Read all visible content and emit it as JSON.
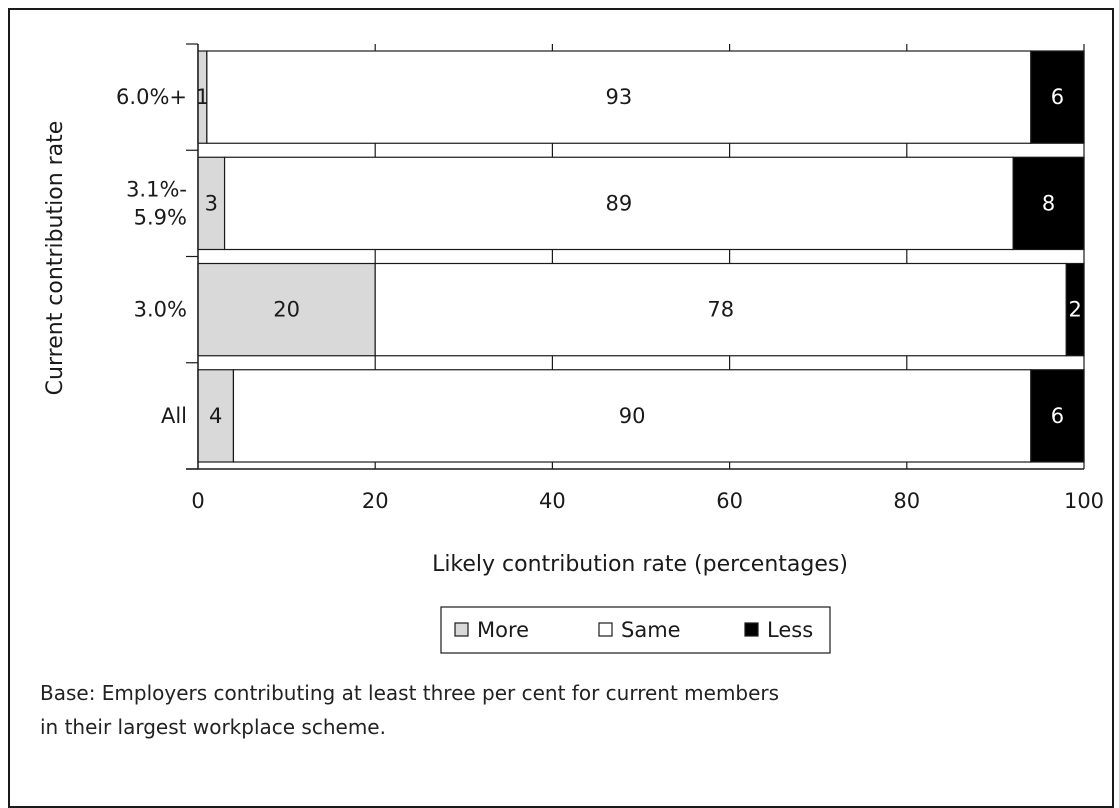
{
  "chart_data": {
    "type": "bar",
    "orientation": "horizontal",
    "stacked": true,
    "categories": [
      "6.0%+",
      "3.1%-\n5.9%",
      "3.0%",
      "All"
    ],
    "series": [
      {
        "name": "More",
        "values": [
          1,
          3,
          20,
          4
        ],
        "color": "#d9d9d9",
        "label_color": "#1a1a1a"
      },
      {
        "name": "Same",
        "values": [
          93,
          89,
          78,
          90
        ],
        "color": "#ffffff",
        "label_color": "#1a1a1a"
      },
      {
        "name": "Less",
        "values": [
          6,
          8,
          2,
          6
        ],
        "color": "#000000",
        "label_color": "#ffffff"
      }
    ],
    "xlabel": "Likely contribution rate (percentages)",
    "ylabel": "Current contribution rate",
    "xlim": [
      0,
      100
    ],
    "xticks": [
      "0",
      "20",
      "40",
      "60",
      "80",
      "100"
    ],
    "grid": "vertical",
    "legend_position": "bottom-center",
    "legend_symbols": [
      "■",
      "□",
      "■"
    ]
  },
  "footnote": {
    "line1": "Base: Employers contributing at least three per cent for current members",
    "line2": "in their largest workplace scheme."
  }
}
